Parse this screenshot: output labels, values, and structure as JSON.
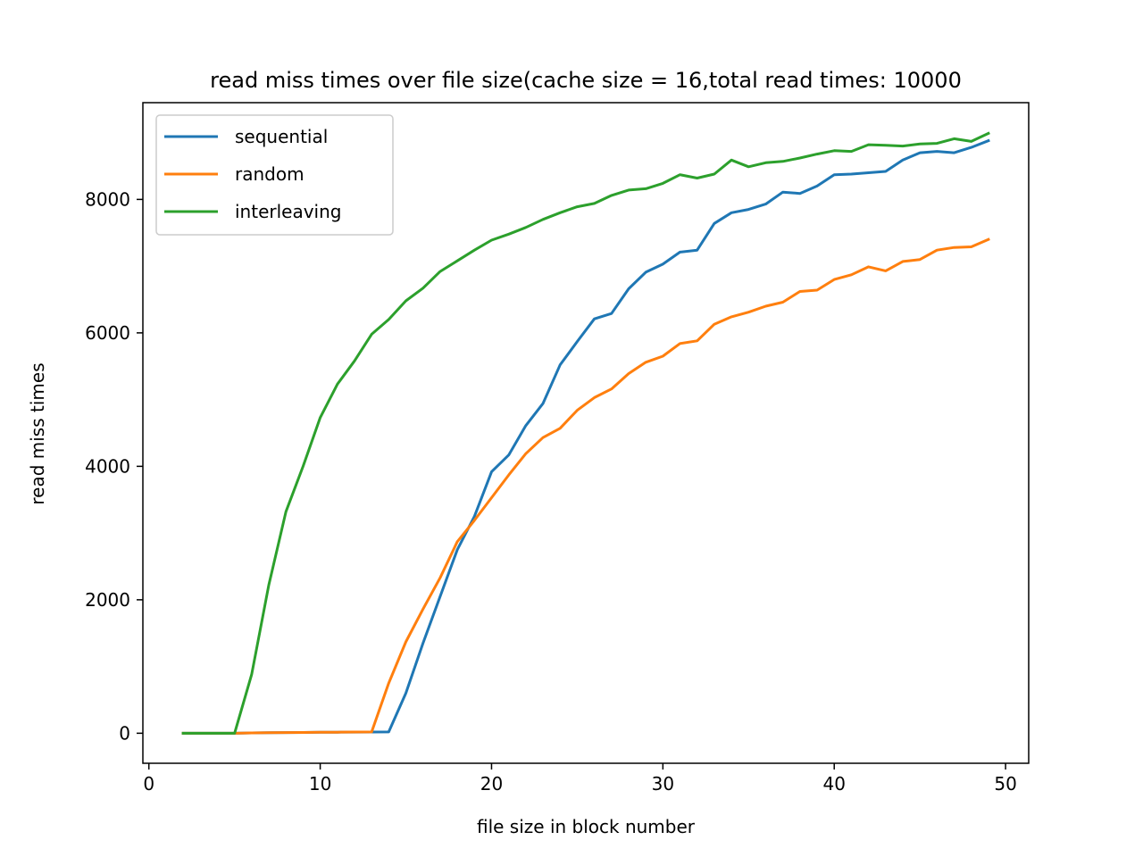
{
  "chart_data": {
    "type": "line",
    "title": "read miss times over file size(cache size = 16,total read times: 10000",
    "xlabel": "file size in block number",
    "ylabel": "read miss times",
    "xlim": [
      -0.35,
      51.35
    ],
    "ylim": [
      -450,
      9450
    ],
    "xticks": [
      0,
      10,
      20,
      30,
      40,
      50
    ],
    "yticks": [
      0,
      2000,
      4000,
      6000,
      8000
    ],
    "legend_position": "upper left",
    "grid": false,
    "x": [
      2,
      3,
      4,
      5,
      6,
      7,
      8,
      9,
      10,
      11,
      12,
      13,
      14,
      15,
      16,
      17,
      18,
      19,
      20,
      21,
      22,
      23,
      24,
      25,
      26,
      27,
      28,
      29,
      30,
      31,
      32,
      33,
      34,
      35,
      36,
      37,
      38,
      39,
      40,
      41,
      42,
      43,
      44,
      45,
      46,
      47,
      48,
      49
    ],
    "series": [
      {
        "name": "sequential",
        "color": "#1f77b4",
        "values": [
          0,
          0,
          0,
          0,
          5,
          8,
          10,
          12,
          14,
          15,
          17,
          18,
          20,
          600,
          1350,
          2050,
          2750,
          3250,
          3920,
          4170,
          4610,
          4940,
          5520,
          5870,
          6210,
          6290,
          6660,
          6910,
          7030,
          7210,
          7240,
          7640,
          7800,
          7850,
          7930,
          8110,
          8090,
          8200,
          8370,
          8380,
          8400,
          8420,
          8590,
          8700,
          8720,
          8700,
          8780,
          8880
        ]
      },
      {
        "name": "random",
        "color": "#ff7f0e",
        "values": [
          0,
          0,
          0,
          0,
          5,
          8,
          10,
          12,
          14,
          16,
          18,
          20,
          750,
          1370,
          1860,
          2330,
          2870,
          3190,
          3530,
          3870,
          4190,
          4430,
          4570,
          4840,
          5030,
          5160,
          5390,
          5560,
          5650,
          5840,
          5880,
          6130,
          6240,
          6310,
          6400,
          6460,
          6620,
          6640,
          6800,
          6870,
          6990,
          6930,
          7070,
          7100,
          7240,
          7280,
          7290,
          7400
        ]
      },
      {
        "name": "interleaving",
        "color": "#2ca02c",
        "values": [
          0,
          0,
          0,
          0,
          880,
          2220,
          3320,
          4000,
          4730,
          5230,
          5580,
          5980,
          6200,
          6480,
          6670,
          6920,
          7080,
          7240,
          7390,
          7480,
          7580,
          7700,
          7800,
          7890,
          7940,
          8060,
          8140,
          8160,
          8240,
          8370,
          8320,
          8380,
          8590,
          8490,
          8550,
          8570,
          8620,
          8680,
          8730,
          8720,
          8820,
          8810,
          8800,
          8830,
          8840,
          8910,
          8870,
          8990
        ]
      }
    ]
  }
}
